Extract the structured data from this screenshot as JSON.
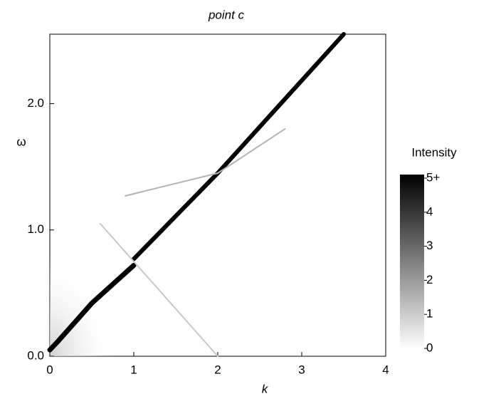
{
  "chart_data": {
    "type": "line",
    "title": "point c",
    "x_label": "k",
    "y_label": "ω",
    "xlim": [
      0,
      4
    ],
    "xticks": [
      0,
      1,
      2,
      3,
      4
    ],
    "ylim": [
      0,
      2.55
    ],
    "yticks": [
      {
        "value": 0,
        "label": "0.0"
      },
      {
        "value": 1,
        "label": "1.0"
      },
      {
        "value": 2,
        "label": "2.0"
      }
    ],
    "series": [
      {
        "color": "#000000",
        "x": [
          0,
          0.1,
          0.5,
          1.0
        ],
        "values": [
          0.05,
          0.12,
          0.42,
          0.72
        ]
      },
      {
        "color": "#000000",
        "x": [
          1.0,
          2.0,
          3.5
        ],
        "values": [
          0.77,
          1.45,
          2.55
        ]
      },
      {
        "color": "#c8c8c8",
        "x": [
          0.6,
          1.0,
          2.0
        ],
        "values": [
          1.05,
          0.75,
          0.0
        ]
      },
      {
        "color": "#b4b4b4",
        "x": [
          0.9,
          2.0,
          2.8
        ],
        "values": [
          1.27,
          1.45,
          1.8
        ]
      }
    ],
    "colorbar": {
      "title": "Intensity",
      "lim": [
        0,
        5
      ],
      "ticks": [
        0,
        1,
        2,
        3,
        4,
        {
          "value": 5,
          "label": "5+"
        }
      ]
    }
  }
}
